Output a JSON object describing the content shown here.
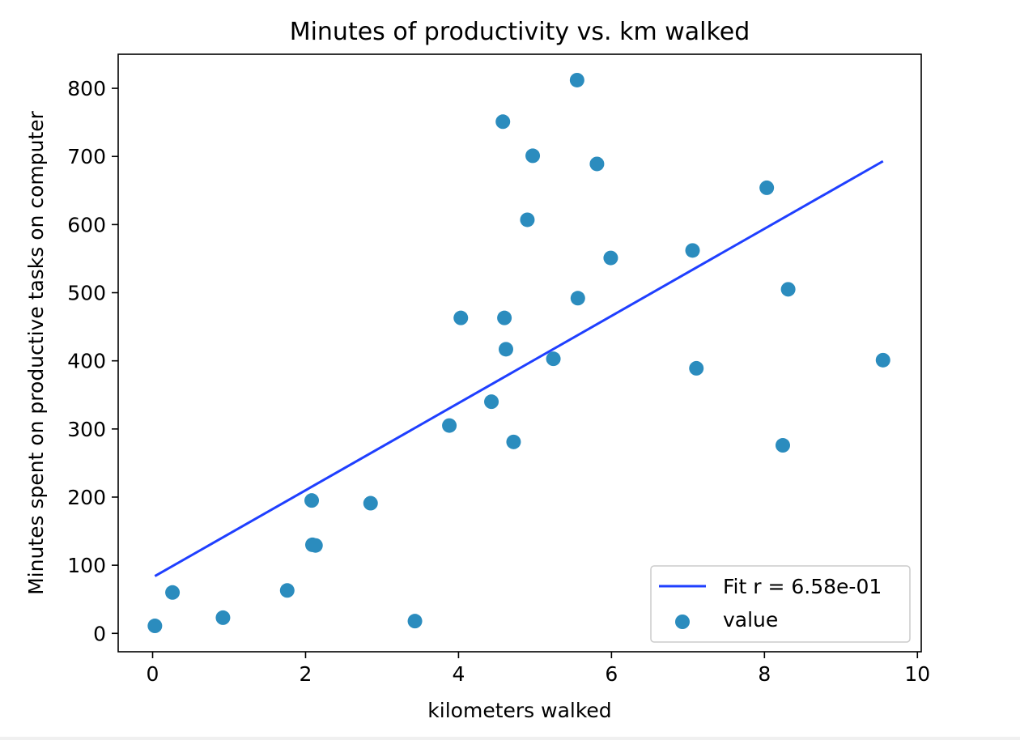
{
  "chart_data": {
    "type": "scatter",
    "title": "Minutes of productivity vs. km walked",
    "xlabel": "kilometers walked",
    "ylabel": "Minutes spent on productive tasks on computer",
    "xlim": [
      -0.45,
      10.05
    ],
    "ylim": [
      -27,
      850
    ],
    "xticks": [
      0,
      2,
      4,
      6,
      8,
      10
    ],
    "yticks": [
      0,
      100,
      200,
      300,
      400,
      500,
      600,
      700,
      800
    ],
    "grid": false,
    "legend_position": "bottom-right",
    "series": [
      {
        "name": "value",
        "kind": "scatter",
        "color": "#2b8cbe",
        "x": [
          0.03,
          0.26,
          0.92,
          1.76,
          2.08,
          2.09,
          2.13,
          2.85,
          3.43,
          3.88,
          4.03,
          4.43,
          4.58,
          4.6,
          4.62,
          4.72,
          4.9,
          4.97,
          5.24,
          5.55,
          5.56,
          5.81,
          5.99,
          7.06,
          7.11,
          8.03,
          8.24,
          8.31,
          9.55
        ],
        "y": [
          11,
          60,
          23,
          63,
          195,
          130,
          129,
          191,
          18,
          305,
          463,
          340,
          751,
          463,
          417,
          281,
          607,
          701,
          403,
          812,
          492,
          689,
          551,
          562,
          389,
          654,
          276,
          505,
          401
        ]
      },
      {
        "name": "Fit r = 6.58e-01",
        "kind": "line",
        "color": "#1f3fff",
        "x": [
          0.03,
          9.55
        ],
        "y": [
          84,
          693
        ]
      }
    ]
  }
}
